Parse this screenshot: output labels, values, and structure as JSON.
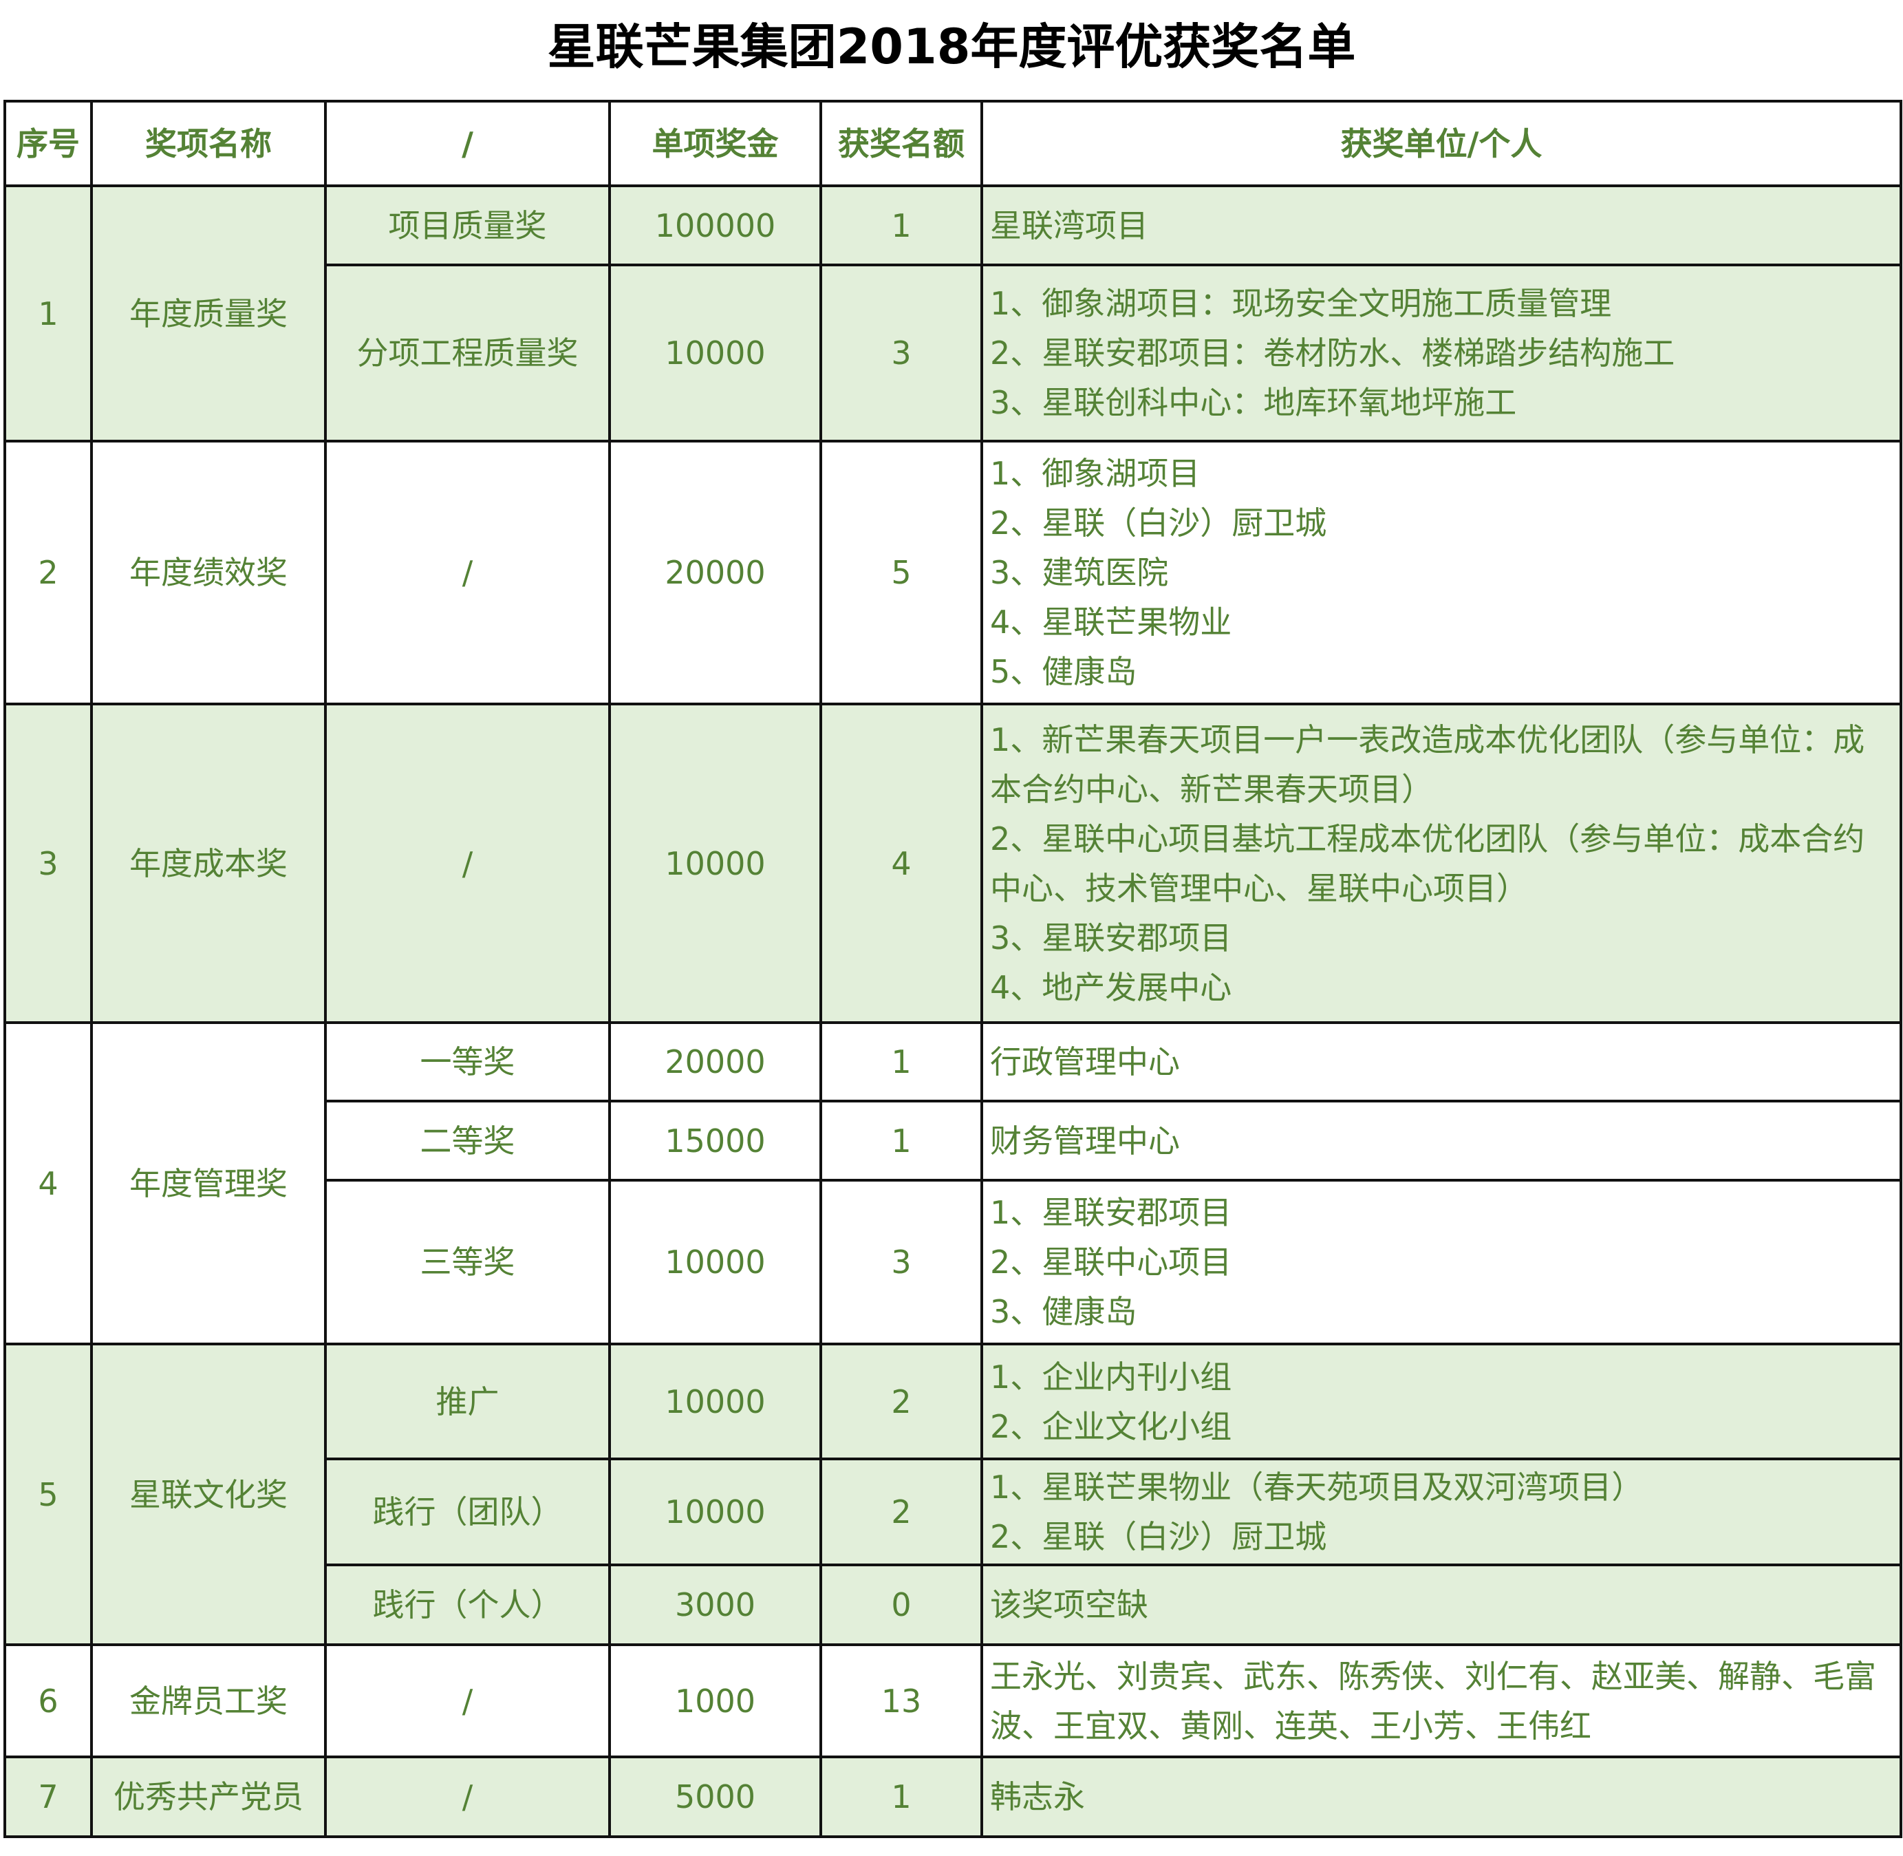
{
  "title": "星联芒果集团2018年度评优获奖名单",
  "headers": [
    "序号",
    "奖项名称",
    "/",
    "单项奖金",
    "获奖名额",
    "获奖单位/个人"
  ],
  "rows": [
    {
      "no": "1",
      "award": "年度质量奖",
      "sub": [
        {
          "name": "项目质量奖",
          "amount": "100000",
          "count": "1",
          "winners": [
            "星联湾项目"
          ]
        },
        {
          "name": "分项工程质量奖",
          "amount": "10000",
          "count": "3",
          "winners": [
            "1、御象湖项目：现场安全文明施工质量管理",
            "2、星联安郡项目：卷材防水、楼梯踏步结构施工",
            "3、星联创科中心：地库环氧地坪施工"
          ]
        }
      ]
    },
    {
      "no": "2",
      "award": "年度绩效奖",
      "sub": [
        {
          "name": "/",
          "amount": "20000",
          "count": "5",
          "winners": [
            "1、御象湖项目",
            "2、星联（白沙）厨卫城",
            "3、建筑医院",
            "4、星联芒果物业",
            "5、健康岛"
          ]
        }
      ]
    },
    {
      "no": "3",
      "award": "年度成本奖",
      "sub": [
        {
          "name": "/",
          "amount": "10000",
          "count": "4",
          "winners": [
            "1、新芒果春天项目一户一表改造成本优化团队（参与单位：成本合约中心、新芒果春天项目）",
            "2、星联中心项目基坑工程成本优化团队（参与单位：成本合约中心、技术管理中心、星联中心项目）",
            "3、星联安郡项目",
            "4、地产发展中心"
          ]
        }
      ]
    },
    {
      "no": "4",
      "award": "年度管理奖",
      "sub": [
        {
          "name": "一等奖",
          "amount": "20000",
          "count": "1",
          "winners": [
            "行政管理中心"
          ]
        },
        {
          "name": "二等奖",
          "amount": "15000",
          "count": "1",
          "winners": [
            "财务管理中心"
          ]
        },
        {
          "name": "三等奖",
          "amount": "10000",
          "count": "3",
          "winners": [
            "1、星联安郡项目",
            "2、星联中心项目",
            "3、健康岛"
          ]
        }
      ]
    },
    {
      "no": "5",
      "award": "星联文化奖",
      "sub": [
        {
          "name": "推广",
          "amount": "10000",
          "count": "2",
          "winners": [
            "1、企业内刊小组",
            "2、企业文化小组"
          ]
        },
        {
          "name": "践行（团队）",
          "amount": "10000",
          "count": "2",
          "winners": [
            "1、星联芒果物业（春天苑项目及双河湾项目）",
            "2、星联（白沙）厨卫城"
          ]
        },
        {
          "name": "践行（个人）",
          "amount": "3000",
          "count": "0",
          "winners": [
            "该奖项空缺"
          ]
        }
      ]
    },
    {
      "no": "6",
      "award": "金牌员工奖",
      "sub": [
        {
          "name": "/",
          "amount": "1000",
          "count": "13",
          "winners": [
            "王永光、刘贵宾、武东、陈秀侠、刘仁有、赵亚美、解静、毛富波、王宜双、黄刚、连英、王小芳、王伟红"
          ]
        }
      ]
    },
    {
      "no": "7",
      "award": "优秀共产党员",
      "sub": [
        {
          "name": "/",
          "amount": "5000",
          "count": "1",
          "winners": [
            "韩志永"
          ]
        }
      ]
    }
  ],
  "colors": {
    "text": "#548235",
    "band": "#E2EFDA",
    "border": "#111111"
  }
}
